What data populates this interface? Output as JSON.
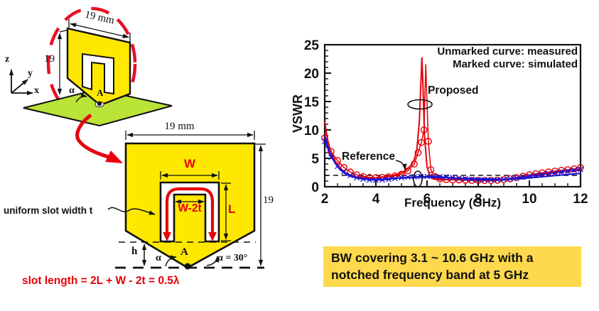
{
  "figure3d": {
    "dim_width": "19 mm",
    "dim_height": "19",
    "axis_z": "z",
    "axis_y": "y",
    "axis_x": "x",
    "alpha": "α",
    "feed_point": "A"
  },
  "figure2d": {
    "dim_width": "19 mm",
    "dim_height": "19",
    "slot_width": "W",
    "slot_inner_width": "W-2t",
    "slot_arm_length": "L",
    "slot_note": "uniform slot width t",
    "substrate_height": "h",
    "alpha": "α",
    "alpha_value": "α = 30°",
    "feed_point": "A",
    "formula": "slot length = 2L + W - 2t = 0.5λ"
  },
  "chart": {
    "ylabel": "VSWR",
    "xlabel": "Frequency (GHz)",
    "legend_line1": "Unmarked curve: measured",
    "legend_line2": "Marked curve: simulated",
    "proposed_label": "Proposed",
    "reference_label": "Reference"
  },
  "chart_data": {
    "type": "line",
    "xlabel": "Frequency (GHz)",
    "ylabel": "VSWR",
    "xlim": [
      2,
      12
    ],
    "ylim": [
      0,
      25
    ],
    "x_ticks": [
      2,
      4,
      6,
      8,
      10,
      12
    ],
    "y_ticks": [
      0,
      5,
      10,
      15,
      20,
      25
    ],
    "grid": false,
    "legend_position": "top-right",
    "annotations": {
      "legend_line1": "Unmarked curve: measured",
      "legend_line2": "Marked curve: simulated",
      "proposed": "Proposed",
      "reference": "Reference",
      "dashed_line_y": 2
    },
    "series": [
      {
        "name": "Proposed (measured)",
        "color": "#e60008",
        "marker": "none",
        "points": [
          [
            2,
            11.5
          ],
          [
            2.1,
            8.5
          ],
          [
            2.2,
            6.8
          ],
          [
            2.4,
            4.6
          ],
          [
            2.6,
            3.3
          ],
          [
            2.8,
            2.5
          ],
          [
            3.0,
            2.0
          ],
          [
            3.2,
            1.75
          ],
          [
            3.4,
            1.6
          ],
          [
            3.6,
            1.55
          ],
          [
            3.8,
            1.55
          ],
          [
            4.0,
            1.6
          ],
          [
            4.2,
            1.7
          ],
          [
            4.4,
            1.8
          ],
          [
            4.6,
            1.95
          ],
          [
            4.8,
            2.15
          ],
          [
            5.0,
            2.5
          ],
          [
            5.2,
            3.0
          ],
          [
            5.4,
            3.9
          ],
          [
            5.5,
            4.8
          ],
          [
            5.6,
            6.5
          ],
          [
            5.7,
            11.5
          ],
          [
            5.74,
            16
          ],
          [
            5.8,
            22.7
          ],
          [
            5.84,
            18
          ],
          [
            5.9,
            9
          ],
          [
            6.0,
            3.5
          ],
          [
            6.1,
            2.0
          ],
          [
            6.2,
            1.5
          ],
          [
            6.4,
            1.25
          ],
          [
            6.6,
            1.2
          ],
          [
            7.0,
            1.3
          ],
          [
            7.4,
            1.35
          ],
          [
            7.8,
            1.25
          ],
          [
            8.2,
            1.15
          ],
          [
            8.6,
            1.1
          ],
          [
            9.0,
            1.25
          ],
          [
            9.4,
            1.5
          ],
          [
            9.8,
            1.8
          ],
          [
            10.2,
            2.1
          ],
          [
            10.6,
            2.35
          ],
          [
            11.0,
            2.55
          ],
          [
            11.4,
            2.7
          ],
          [
            11.8,
            2.85
          ],
          [
            12,
            2.95
          ]
        ]
      },
      {
        "name": "Proposed (simulated)",
        "color": "#e60008",
        "marker": "circle",
        "points": [
          [
            2,
            8.6
          ],
          [
            2.25,
            6.2
          ],
          [
            2.5,
            4.6
          ],
          [
            2.75,
            3.4
          ],
          [
            3.0,
            2.6
          ],
          [
            3.25,
            2.1
          ],
          [
            3.5,
            1.8
          ],
          [
            3.75,
            1.65
          ],
          [
            4.0,
            1.6
          ],
          [
            4.25,
            1.65
          ],
          [
            4.5,
            1.75
          ],
          [
            4.75,
            1.9
          ],
          [
            5.0,
            2.2
          ],
          [
            5.25,
            2.8
          ],
          [
            5.5,
            4.0
          ],
          [
            5.65,
            6.0
          ],
          [
            5.78,
            7.8
          ],
          [
            5.88,
            10
          ],
          [
            5.95,
            21.5
          ],
          [
            6.05,
            8
          ],
          [
            6.15,
            3
          ],
          [
            6.3,
            1.8
          ],
          [
            6.5,
            1.4
          ],
          [
            6.75,
            1.25
          ],
          [
            7.0,
            1.2
          ],
          [
            7.25,
            1.2
          ],
          [
            7.5,
            1.15
          ],
          [
            7.75,
            1.1
          ],
          [
            8.0,
            1.1
          ],
          [
            8.25,
            1.1
          ],
          [
            8.5,
            1.1
          ],
          [
            8.75,
            1.15
          ],
          [
            9.0,
            1.25
          ],
          [
            9.25,
            1.4
          ],
          [
            9.5,
            1.6
          ],
          [
            9.75,
            1.85
          ],
          [
            10.0,
            2.1
          ],
          [
            10.25,
            2.3
          ],
          [
            10.5,
            2.45
          ],
          [
            10.75,
            2.6
          ],
          [
            11.0,
            2.75
          ],
          [
            11.25,
            2.9
          ],
          [
            11.5,
            3.0
          ],
          [
            11.75,
            3.15
          ],
          [
            12,
            3.4
          ]
        ]
      },
      {
        "name": "Reference (measured)",
        "color": "#1512d8",
        "marker": "none",
        "points": [
          [
            2,
            9.0
          ],
          [
            2.2,
            6.0
          ],
          [
            2.4,
            4.2
          ],
          [
            2.6,
            3.0
          ],
          [
            2.8,
            2.3
          ],
          [
            3.0,
            1.85
          ],
          [
            3.3,
            1.5
          ],
          [
            3.6,
            1.35
          ],
          [
            4.0,
            1.3
          ],
          [
            4.5,
            1.4
          ],
          [
            5.0,
            1.55
          ],
          [
            5.5,
            1.65
          ],
          [
            6.0,
            1.7
          ],
          [
            6.5,
            1.65
          ],
          [
            7.0,
            1.55
          ],
          [
            7.5,
            1.45
          ],
          [
            8.0,
            1.4
          ],
          [
            8.5,
            1.35
          ],
          [
            9.0,
            1.3
          ],
          [
            9.5,
            1.4
          ],
          [
            10.0,
            1.55
          ],
          [
            10.5,
            1.75
          ],
          [
            11.0,
            1.95
          ],
          [
            11.5,
            2.15
          ],
          [
            12,
            2.35
          ]
        ]
      },
      {
        "name": "Reference (simulated)",
        "color": "#1512d8",
        "marker": "x",
        "points": [
          [
            2,
            8.0
          ],
          [
            2.25,
            5.2
          ],
          [
            2.5,
            3.6
          ],
          [
            2.75,
            2.6
          ],
          [
            3.0,
            2.0
          ],
          [
            3.25,
            1.6
          ],
          [
            3.5,
            1.35
          ],
          [
            3.75,
            1.2
          ],
          [
            4.0,
            1.15
          ],
          [
            4.25,
            1.2
          ],
          [
            4.5,
            1.3
          ],
          [
            4.75,
            1.45
          ],
          [
            5.0,
            1.6
          ],
          [
            5.25,
            1.7
          ],
          [
            5.5,
            1.75
          ],
          [
            5.75,
            1.8
          ],
          [
            6.0,
            1.8
          ],
          [
            6.25,
            1.8
          ],
          [
            6.5,
            1.75
          ],
          [
            6.75,
            1.7
          ],
          [
            7.0,
            1.6
          ],
          [
            7.25,
            1.5
          ],
          [
            7.5,
            1.4
          ],
          [
            7.75,
            1.3
          ],
          [
            8.0,
            1.25
          ],
          [
            8.25,
            1.2
          ],
          [
            8.5,
            1.2
          ],
          [
            8.75,
            1.25
          ],
          [
            9.0,
            1.3
          ],
          [
            9.25,
            1.4
          ],
          [
            9.5,
            1.55
          ],
          [
            9.75,
            1.7
          ],
          [
            10.0,
            1.85
          ],
          [
            10.25,
            2.0
          ],
          [
            10.5,
            2.15
          ],
          [
            10.75,
            2.3
          ],
          [
            11.0,
            2.45
          ],
          [
            11.25,
            2.6
          ],
          [
            11.5,
            2.75
          ],
          [
            11.75,
            2.9
          ],
          [
            12,
            3.05
          ]
        ]
      }
    ]
  },
  "callout": {
    "line1": "BW covering 3.1 ~ 10.6 GHz with a",
    "line2": "notched frequency band at 5 GHz"
  },
  "colors": {
    "patch_yellow": "#ffe800",
    "ground_green": "#b9e437",
    "accent_red": "#e8000f",
    "curve_red": "#e60008",
    "curve_blue": "#1512d8",
    "callout_bg": "#ffd94d",
    "dashed_circle_red": "#e81123"
  }
}
